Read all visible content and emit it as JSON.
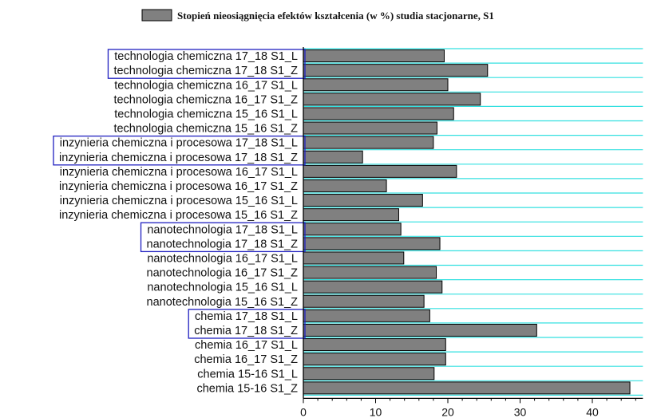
{
  "chart_data": {
    "type": "bar",
    "orientation": "horizontal",
    "legend": {
      "label": "Stopień nieosiągnięcia efektów kształcenia (w %) studia stacjonarne, S1",
      "placement": "top-center"
    },
    "xlim": [
      0,
      47
    ],
    "xticks": [
      0,
      10,
      20,
      30,
      40
    ],
    "grid": "horizontal",
    "colors": {
      "bar": "#808080",
      "bar_edge": "#000000",
      "grid": "#33e0e0",
      "highlight_box": "#2020c0"
    },
    "categories": [
      "technologia chemiczna 17_18 S1_L",
      "technologia chemiczna 17_18 S1_Z",
      "technologia chemiczna 16_17 S1_L",
      "technologia chemiczna 16_17 S1_Z",
      "technologia chemiczna 15_16 S1_L",
      "technologia chemiczna 15_16 S1_Z",
      "inzynieria chemiczna i procesowa 17_18 S1_L",
      "inzynieria chemiczna i procesowa 17_18 S1_Z",
      "inzynieria chemiczna i procesowa 16_17 S1_L",
      "inzynieria chemiczna i procesowa 16_17 S1_Z",
      "inzynieria chemiczna i procesowa 15_16 S1_L",
      "inzynieria chemiczna i procesowa 15_16 S1_Z",
      "nanotechnologia 17_18 S1_L",
      "nanotechnologia 17_18 S1_Z",
      "nanotechnologia 16_17 S1_L",
      "nanotechnologia 16_17 S1_Z",
      "nanotechnologia 15_16 S1_L",
      "nanotechnologia 15_16 S1_Z",
      "chemia 17_18 S1_L",
      "chemia 17_18 S1_Z",
      "chemia 16_17 S1_L",
      "chemia 16_17 S1_Z",
      "chemia 15-16 S1_L",
      "chemia 15-16 S1_Z"
    ],
    "values": [
      19.5,
      25.5,
      20.0,
      24.5,
      20.8,
      18.5,
      18.0,
      8.2,
      21.2,
      11.5,
      16.5,
      13.2,
      13.5,
      18.9,
      13.9,
      18.4,
      19.2,
      16.7,
      17.5,
      32.3,
      19.7,
      19.7,
      18.1,
      45.2
    ],
    "highlighted_groups": [
      [
        0,
        1
      ],
      [
        6,
        7
      ],
      [
        12,
        13
      ],
      [
        18,
        19
      ]
    ]
  }
}
